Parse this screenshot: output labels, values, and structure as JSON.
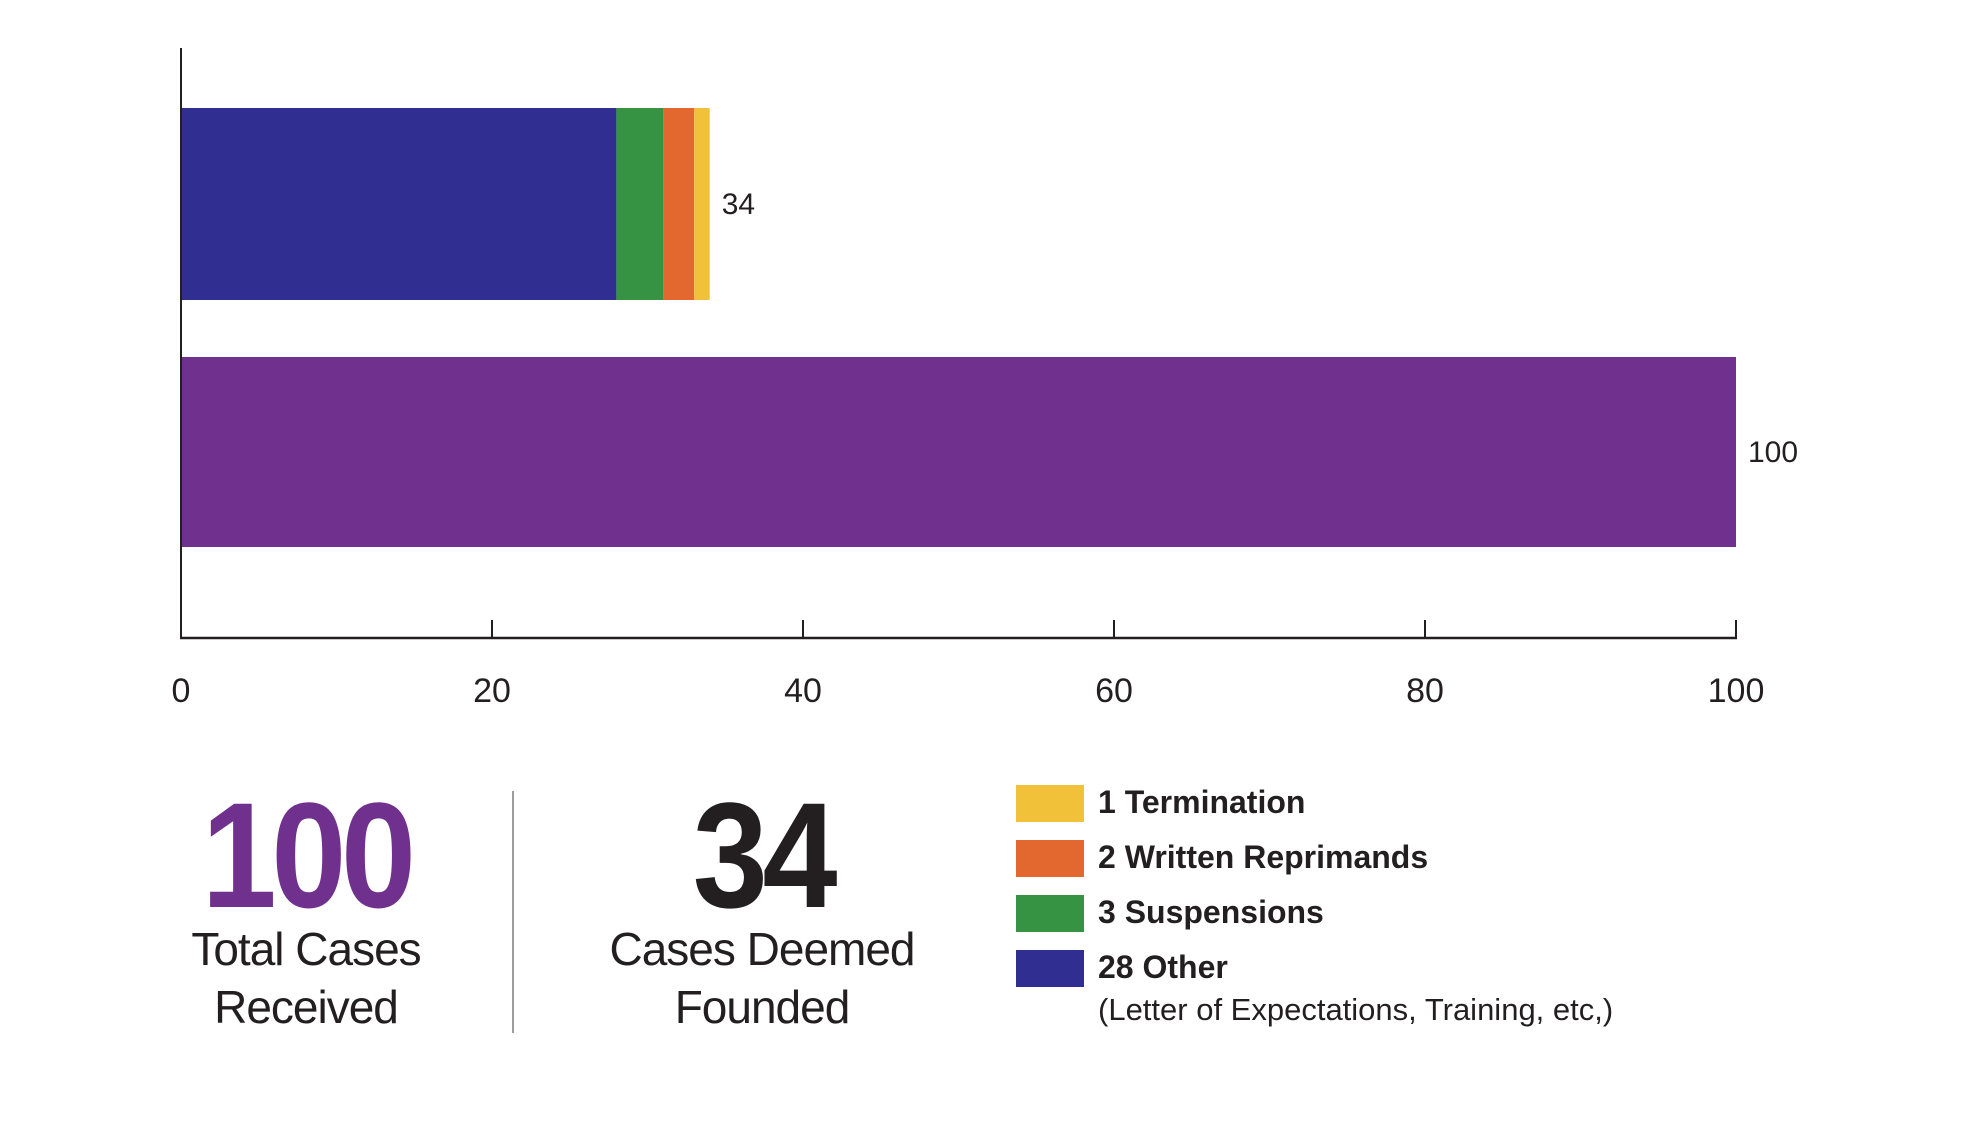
{
  "chart_data": {
    "type": "bar",
    "orientation": "horizontal",
    "stacked": true,
    "xlim": [
      0,
      100
    ],
    "x_ticks": [
      "0",
      "20",
      "40",
      "60",
      "80",
      "100"
    ],
    "grid": false,
    "bars": [
      {
        "total_label": "34",
        "segments": [
          {
            "name": "Other",
            "value": 28,
            "color": "#312E91"
          },
          {
            "name": "Suspensions",
            "value": 3,
            "color": "#369343"
          },
          {
            "name": "Written Reprimands",
            "value": 2,
            "color": "#E36830"
          },
          {
            "name": "Termination",
            "value": 1,
            "color": "#F2C13A"
          }
        ]
      },
      {
        "total_label": "100",
        "segments": [
          {
            "name": "Total Cases Received",
            "value": 100,
            "color": "#70318E"
          }
        ]
      }
    ]
  },
  "stats": {
    "received": {
      "number": "100",
      "line1": "Total Cases",
      "line2": "Received",
      "color": "#70318E"
    },
    "founded": {
      "number": "34",
      "line1": "Cases Deemed",
      "line2": "Founded",
      "color": "#231F20"
    }
  },
  "legend": {
    "placement": "bottom-right",
    "items": [
      {
        "label": "1 Termination",
        "color": "#F2C13A"
      },
      {
        "label": "2 Written Reprimands",
        "color": "#E36830"
      },
      {
        "label": "3 Suspensions",
        "color": "#369343"
      },
      {
        "label": "28 Other",
        "color": "#312E91"
      }
    ],
    "note": "(Letter of Expectations, Training, etc,)"
  }
}
